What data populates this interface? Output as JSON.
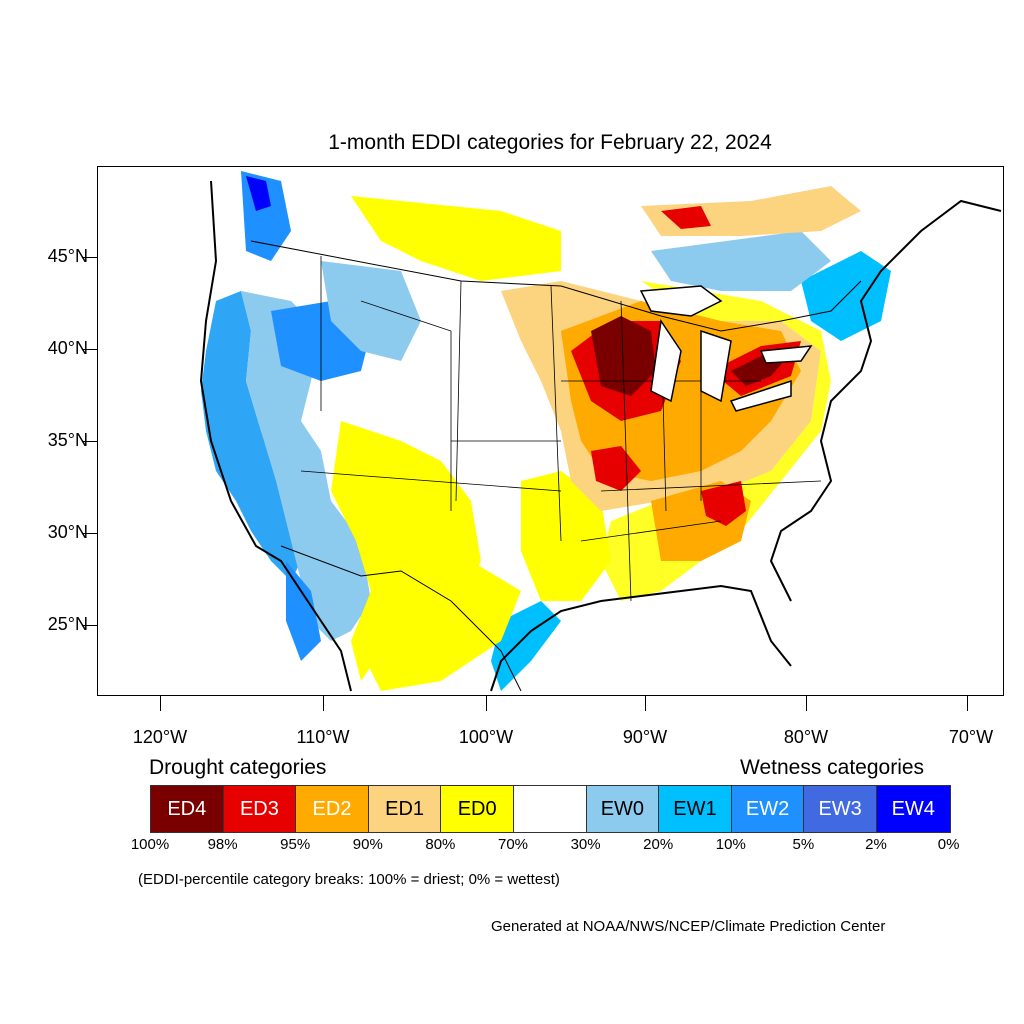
{
  "title": "1-month EDDI categories for February 22, 2024",
  "lat_labels": [
    "45°N",
    "40°N",
    "35°N",
    "30°N",
    "25°N"
  ],
  "lon_labels": [
    "120°W",
    "110°W",
    "100°W",
    "90°W",
    "80°W",
    "70°W"
  ],
  "legend": {
    "drought_heading": "Drought categories",
    "wetness_heading": "Wetness categories",
    "categories": [
      {
        "label": "ED4",
        "color": "#7a0000",
        "text_color": "#ffffff"
      },
      {
        "label": "ED3",
        "color": "#e60000",
        "text_color": "#ffffff"
      },
      {
        "label": "ED2",
        "color": "#ffaa00",
        "text_color": "#ffffff"
      },
      {
        "label": "ED1",
        "color": "#fcd37f",
        "text_color": "#000000"
      },
      {
        "label": "ED0",
        "color": "#ffff00",
        "text_color": "#000000"
      },
      {
        "label": "",
        "color": "#ffffff",
        "text_color": "#000000"
      },
      {
        "label": "EW0",
        "color": "#8ccbee",
        "text_color": "#000000"
      },
      {
        "label": "EW1",
        "color": "#00bfff",
        "text_color": "#000000"
      },
      {
        "label": "EW2",
        "color": "#1e90ff",
        "text_color": "#ffffff"
      },
      {
        "label": "EW3",
        "color": "#4169e1",
        "text_color": "#ffffff"
      },
      {
        "label": "EW4",
        "color": "#0000ff",
        "text_color": "#ffffff"
      }
    ],
    "breaks": [
      "100%",
      "98%",
      "95%",
      "90%",
      "80%",
      "70%",
      "30%",
      "20%",
      "10%",
      "5%",
      "2%",
      "0%"
    ]
  },
  "note": "(EDDI-percentile category breaks: 100% = driest; 0% = wettest)",
  "credit": "Generated at NOAA/NWS/NCEP/Climate Prediction Center"
}
